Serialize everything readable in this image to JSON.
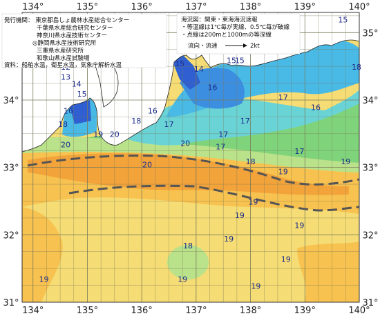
{
  "map": {
    "longitude_labels": [
      "134°",
      "135°",
      "136°",
      "137°",
      "138°",
      "139°",
      "140°"
    ],
    "latitude_labels": [
      "35°",
      "34°",
      "33°",
      "32°",
      "31°"
    ],
    "colors": {
      "sea_21plus": "#f2a33a",
      "sea_20": "#f7c24f",
      "sea_19": "#f5dc74",
      "sea_18": "#b9e28a",
      "sea_17": "#7fd37a",
      "sea_16": "#6ad3d6",
      "sea_15": "#49b9e6",
      "sea_14": "#3c8fe0",
      "sea_13": "#2f5fd0",
      "land": "#ffffff",
      "grid": "#7a7a5a",
      "current_path": "#555555"
    },
    "legend_panel": {
      "lines": [
        "発行機関：  東京都島しょ農林水産総合センター",
        "千葉県水産総合研究センター",
        "神奈川県水産技術センター",
        "◎静岡県水産技術研究所",
        "三重県水産研究所",
        "和歌山県水産試験場",
        "資料：船舶水温，衛星水温，気象庁解析水温"
      ]
    },
    "info_panel": {
      "lines": [
        "海況図：関東・東海海況速報",
        "・等温線は1℃毎が実線、0.5℃毎が破線",
        "・点線は200mと1000mの等深線"
      ],
      "flow_label": "流向・流速",
      "flow_speed": "2kt"
    },
    "isotherm_labels": [
      {
        "t": "15",
        "lon": 139.7,
        "lat": 35.15
      },
      {
        "t": "15",
        "lon": 138.3,
        "lat": 34.9
      },
      {
        "t": "14",
        "lon": 137.45,
        "lat": 34.85
      },
      {
        "t": "13",
        "lon": 136.85,
        "lat": 34.82
      },
      {
        "t": "13",
        "lon": 136.9,
        "lat": 34.88
      },
      {
        "t": "13",
        "lon": 137.0,
        "lat": 34.93
      },
      {
        "t": "14",
        "lon": 136.85,
        "lat": 34.7
      },
      {
        "t": "15",
        "lon": 137.1,
        "lat": 34.75
      },
      {
        "t": "15",
        "lon": 137.65,
        "lat": 34.55
      },
      {
        "t": "15",
        "lon": 137.8,
        "lat": 34.55
      },
      {
        "t": "14",
        "lon": 137.05,
        "lat": 34.42
      },
      {
        "t": "15",
        "lon": 136.7,
        "lat": 34.5
      },
      {
        "t": "12",
        "lon": 134.6,
        "lat": 34.45
      },
      {
        "t": "13",
        "lon": 134.6,
        "lat": 34.3
      },
      {
        "t": "14",
        "lon": 134.8,
        "lat": 34.2
      },
      {
        "t": "15",
        "lon": 134.9,
        "lat": 34.05
      },
      {
        "t": "16",
        "lon": 137.3,
        "lat": 34.15
      },
      {
        "t": "16",
        "lon": 136.2,
        "lat": 33.8
      },
      {
        "t": "17",
        "lon": 138.6,
        "lat": 34.0
      },
      {
        "t": "16",
        "lon": 139.2,
        "lat": 33.85
      },
      {
        "t": "18",
        "lon": 139.95,
        "lat": 34.45
      },
      {
        "t": "16",
        "lon": 134.65,
        "lat": 33.8
      },
      {
        "t": "18",
        "lon": 134.55,
        "lat": 33.6
      },
      {
        "t": "17",
        "lon": 136.5,
        "lat": 33.6
      },
      {
        "t": "17",
        "lon": 137.5,
        "lat": 33.45
      },
      {
        "t": "17",
        "lon": 137.9,
        "lat": 33.65
      },
      {
        "t": "17",
        "lon": 137.45,
        "lat": 33.27
      },
      {
        "t": "17",
        "lon": 138.9,
        "lat": 33.2
      },
      {
        "t": "18",
        "lon": 135.9,
        "lat": 33.65
      },
      {
        "t": "19",
        "lon": 135.2,
        "lat": 33.45
      },
      {
        "t": "20",
        "lon": 135.5,
        "lat": 33.45
      },
      {
        "t": "20",
        "lon": 134.6,
        "lat": 33.3
      },
      {
        "t": "20",
        "lon": 136.8,
        "lat": 33.32
      },
      {
        "t": "20",
        "lon": 136.1,
        "lat": 33.0
      },
      {
        "t": "18",
        "lon": 138.0,
        "lat": 33.05
      },
      {
        "t": "19",
        "lon": 138.6,
        "lat": 32.9
      },
      {
        "t": "19",
        "lon": 139.75,
        "lat": 33.05
      },
      {
        "t": "19",
        "lon": 138.05,
        "lat": 32.45
      },
      {
        "t": "19",
        "lon": 137.8,
        "lat": 32.25
      },
      {
        "t": "19",
        "lon": 138.9,
        "lat": 32.1
      },
      {
        "t": "19",
        "lon": 137.6,
        "lat": 31.9
      },
      {
        "t": "18",
        "lon": 136.85,
        "lat": 31.8
      },
      {
        "t": "19",
        "lon": 138.65,
        "lat": 31.6
      },
      {
        "t": "19",
        "lon": 134.2,
        "lat": 31.3
      },
      {
        "t": "19",
        "lon": 136.75,
        "lat": 31.3
      },
      {
        "t": "19",
        "lon": 138.1,
        "lat": 31.2
      }
    ]
  }
}
